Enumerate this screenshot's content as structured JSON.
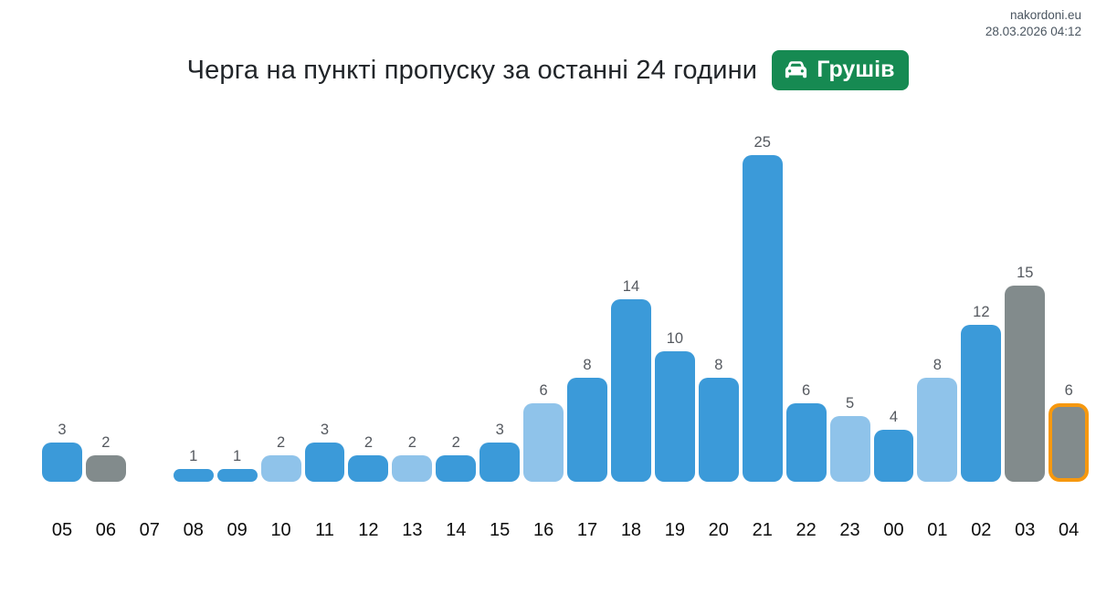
{
  "meta": {
    "site": "nakordoni.eu",
    "datetime": "28.03.2026 04:12"
  },
  "header": {
    "title": "Черга на пункті пропуску за останні 24 години",
    "badge": {
      "label": "Грушів",
      "icon": "car-icon",
      "color": "#168a52"
    }
  },
  "chart_data": {
    "type": "bar",
    "title": "Черга на пункті пропуску за останні 24 години",
    "xlabel": "",
    "ylabel": "",
    "ylim": [
      0,
      25
    ],
    "grid": false,
    "legend": false,
    "categories": [
      "05",
      "06",
      "07",
      "08",
      "09",
      "10",
      "11",
      "12",
      "13",
      "14",
      "15",
      "16",
      "17",
      "18",
      "19",
      "20",
      "21",
      "22",
      "23",
      "00",
      "01",
      "02",
      "03",
      "04"
    ],
    "values": [
      3,
      2,
      0,
      1,
      1,
      2,
      3,
      2,
      2,
      2,
      3,
      6,
      8,
      14,
      10,
      8,
      25,
      6,
      5,
      4,
      8,
      12,
      15,
      6
    ],
    "bar_colors": [
      "blue",
      "gray",
      "none",
      "blue",
      "blue",
      "light_blue",
      "blue",
      "blue",
      "light_blue",
      "blue",
      "blue",
      "light_blue",
      "blue",
      "blue",
      "blue",
      "blue",
      "blue",
      "blue",
      "light_blue",
      "blue",
      "light_blue",
      "blue",
      "gray",
      "gray"
    ],
    "palette": {
      "blue": "#3b9ad9",
      "light_blue": "#8fc3ea",
      "gray": "#828b8c",
      "highlight_border": "#f6980e"
    },
    "highlight_category": "04",
    "highlight_index": 23
  }
}
